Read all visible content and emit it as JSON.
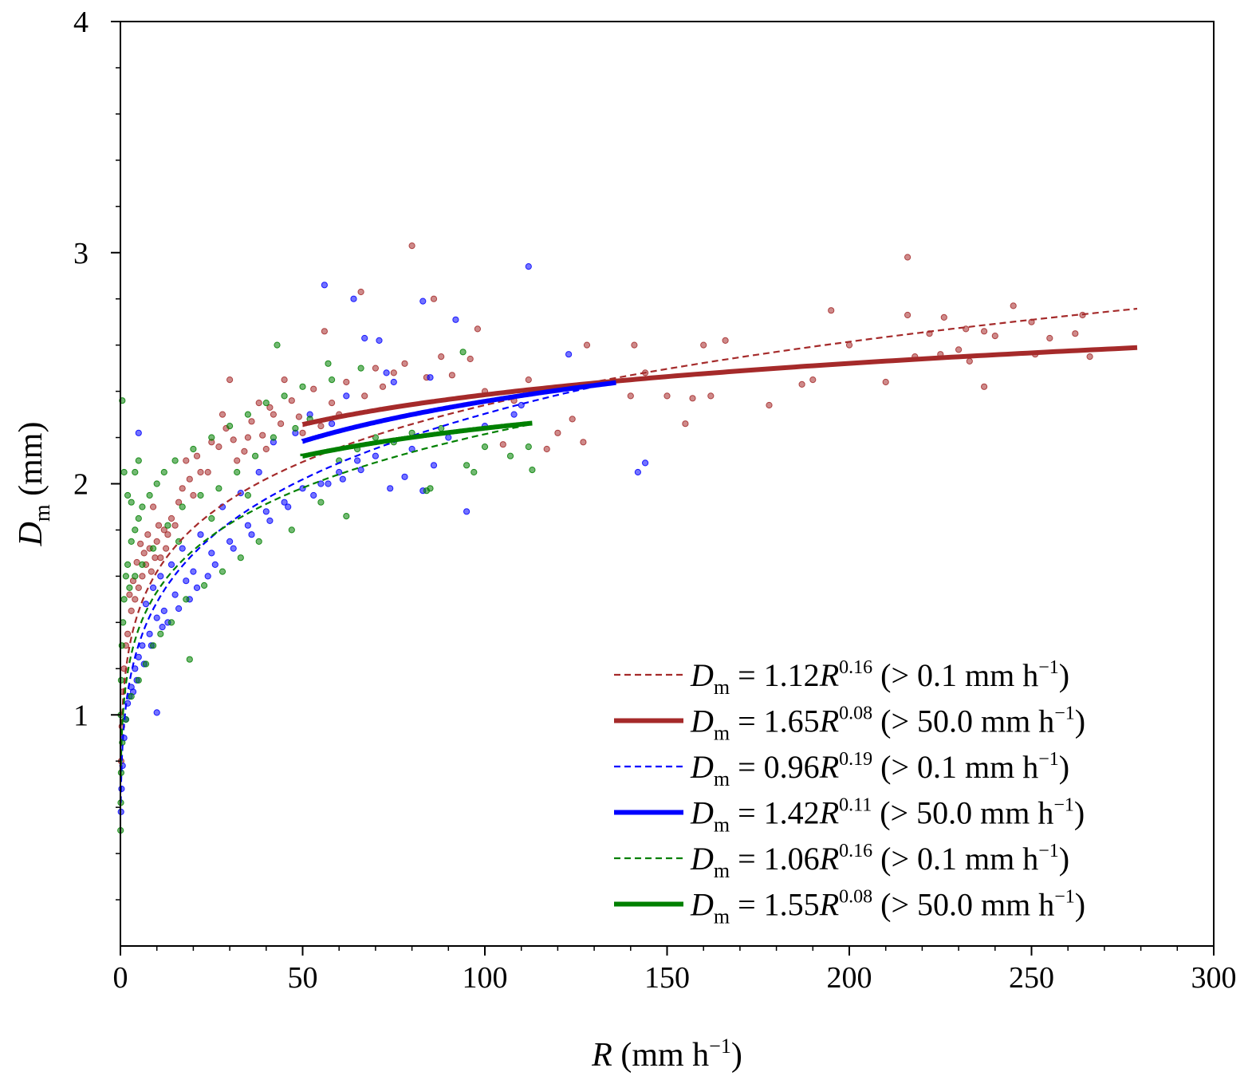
{
  "chart_data": {
    "type": "scatter",
    "xlabel": {
      "var": "R",
      "unit": " (mm h",
      "sup": "−1",
      "close": ")"
    },
    "ylabel": {
      "var": "D",
      "sub": "m",
      "unit": " (mm)"
    },
    "xlim": [
      0,
      300
    ],
    "ylim": [
      0,
      4
    ],
    "x_ticks": [
      0,
      50,
      100,
      150,
      200,
      250,
      300
    ],
    "y_ticks": [
      1,
      2,
      3,
      4
    ],
    "grid": false,
    "legend_position": "bottom-right",
    "colors": {
      "red": "#a52a2a",
      "blue": "#0000ff",
      "green": "#008000"
    },
    "fits": [
      {
        "name": "Dm = 1.12R^0.16 (> 0.1 mm h−1)",
        "coef": "1.12",
        "exp": "0.16",
        "thr": "0.1",
        "a": 1.12,
        "b": 0.16,
        "x_range": [
          0.1,
          279
        ],
        "color": "#a52a2a",
        "style": "dashed"
      },
      {
        "name": "Dm = 1.65R^0.08 (> 50.0 mm h−1)",
        "coef": "1.65",
        "exp": "0.08",
        "thr": "50.0",
        "a": 1.65,
        "b": 0.08,
        "x_range": [
          50,
          279
        ],
        "color": "#a52a2a",
        "style": "solid"
      },
      {
        "name": "Dm = 0.96R^0.19 (> 0.1 mm h−1)",
        "coef": "0.96",
        "exp": "0.19",
        "thr": "0.1",
        "a": 0.96,
        "b": 0.19,
        "x_range": [
          0.1,
          135
        ],
        "color": "#0000ff",
        "style": "dashed"
      },
      {
        "name": "Dm = 1.42R^0.11 (> 50.0 mm h−1)",
        "coef": "1.42",
        "exp": "0.11",
        "thr": "50.0",
        "a": 1.42,
        "b": 0.11,
        "x_range": [
          50,
          136
        ],
        "color": "#0000ff",
        "style": "solid"
      },
      {
        "name": "Dm = 1.06R^0.16 (> 0.1 mm h−1)",
        "coef": "1.06",
        "exp": "0.16",
        "thr": "0.1",
        "a": 1.06,
        "b": 0.16,
        "x_range": [
          0.1,
          113
        ],
        "color": "#008000",
        "style": "dashed"
      },
      {
        "name": "Dm = 1.55R^0.08 (> 50.0 mm h−1)",
        "coef": "1.55",
        "exp": "0.08",
        "thr": "50.0",
        "a": 1.55,
        "b": 0.08,
        "x_range": [
          50,
          113
        ],
        "color": "#008000",
        "style": "solid"
      }
    ],
    "scatter_series": [
      {
        "color": "#a52a2a",
        "points": [
          [
            80,
            3.03
          ],
          [
            216,
            2.98
          ],
          [
            66,
            2.83
          ],
          [
            86,
            2.8
          ],
          [
            195,
            2.75
          ],
          [
            245,
            2.77
          ],
          [
            216,
            2.73
          ],
          [
            226,
            2.72
          ],
          [
            264,
            2.73
          ],
          [
            250,
            2.7
          ],
          [
            56,
            2.66
          ],
          [
            98,
            2.67
          ],
          [
            232,
            2.67
          ],
          [
            237,
            2.66
          ],
          [
            128,
            2.6
          ],
          [
            141,
            2.6
          ],
          [
            160,
            2.6
          ],
          [
            166,
            2.62
          ],
          [
            200,
            2.6
          ],
          [
            222,
            2.65
          ],
          [
            240,
            2.64
          ],
          [
            255,
            2.63
          ],
          [
            262,
            2.65
          ],
          [
            225,
            2.56
          ],
          [
            230,
            2.58
          ],
          [
            218,
            2.55
          ],
          [
            233,
            2.53
          ],
          [
            251,
            2.56
          ],
          [
            266,
            2.55
          ],
          [
            237,
            2.42
          ],
          [
            190,
            2.45
          ],
          [
            187,
            2.43
          ],
          [
            210,
            2.44
          ],
          [
            150,
            2.38
          ],
          [
            157,
            2.37
          ],
          [
            162,
            2.38
          ],
          [
            144,
            2.48
          ],
          [
            178,
            2.34
          ],
          [
            155,
            2.26
          ],
          [
            140,
            2.38
          ],
          [
            124,
            2.28
          ],
          [
            127,
            2.18
          ],
          [
            120,
            2.22
          ],
          [
            105,
            2.17
          ],
          [
            117,
            2.15
          ],
          [
            96,
            2.54
          ],
          [
            88,
            2.55
          ],
          [
            75,
            2.48
          ],
          [
            67,
            2.38
          ],
          [
            60,
            2.3
          ],
          [
            55,
            2.25
          ],
          [
            50,
            2.22
          ],
          [
            45,
            2.45
          ],
          [
            42,
            2.3
          ],
          [
            40,
            2.15
          ],
          [
            38,
            2.35
          ],
          [
            35,
            2.2
          ],
          [
            32,
            2.1
          ],
          [
            30,
            2.45
          ],
          [
            28,
            2.3
          ],
          [
            25,
            2.18
          ],
          [
            22,
            2.05
          ],
          [
            20,
            1.95
          ],
          [
            18,
            2.1
          ],
          [
            16,
            1.92
          ],
          [
            14,
            1.85
          ],
          [
            12,
            1.8
          ],
          [
            10,
            1.75
          ],
          [
            9,
            1.9
          ],
          [
            8,
            1.72
          ],
          [
            7,
            1.65
          ],
          [
            6,
            1.6
          ],
          [
            5,
            1.55
          ],
          [
            4,
            1.5
          ],
          [
            3,
            1.45
          ],
          [
            2,
            1.35
          ],
          [
            1.5,
            1.3
          ],
          [
            1,
            1.2
          ],
          [
            0.7,
            1.1
          ],
          [
            0.4,
            0.95
          ],
          [
            0.2,
            0.8
          ],
          [
            11,
            1.68
          ],
          [
            13,
            1.78
          ],
          [
            15,
            1.82
          ],
          [
            17,
            1.98
          ],
          [
            19,
            2.02
          ],
          [
            21,
            2.12
          ],
          [
            24,
            2.05
          ],
          [
            27,
            2.16
          ],
          [
            29,
            2.24
          ],
          [
            31,
            2.19
          ],
          [
            34,
            2.14
          ],
          [
            36,
            2.27
          ],
          [
            39,
            2.21
          ],
          [
            41,
            2.33
          ],
          [
            44,
            2.26
          ],
          [
            47,
            2.36
          ],
          [
            49,
            2.29
          ],
          [
            53,
            2.41
          ],
          [
            58,
            2.35
          ],
          [
            62,
            2.44
          ],
          [
            70,
            2.5
          ],
          [
            72,
            2.42
          ],
          [
            78,
            2.52
          ],
          [
            84,
            2.46
          ],
          [
            91,
            2.47
          ],
          [
            100,
            2.4
          ],
          [
            108,
            2.36
          ],
          [
            112,
            2.45
          ],
          [
            130,
            2.43
          ],
          [
            6.5,
            1.7
          ],
          [
            7.5,
            1.78
          ],
          [
            8.5,
            1.62
          ],
          [
            9.5,
            1.68
          ],
          [
            4.5,
            1.66
          ],
          [
            3.5,
            1.58
          ],
          [
            5.5,
            1.74
          ],
          [
            2.5,
            1.52
          ],
          [
            10.5,
            1.82
          ],
          [
            12.5,
            1.72
          ]
        ]
      },
      {
        "color": "#0000ff",
        "points": [
          [
            112,
            2.94
          ],
          [
            56,
            2.86
          ],
          [
            64,
            2.8
          ],
          [
            83,
            2.79
          ],
          [
            92,
            2.71
          ],
          [
            67,
            2.63
          ],
          [
            71,
            2.62
          ],
          [
            123,
            2.56
          ],
          [
            73,
            2.48
          ],
          [
            85,
            2.46
          ],
          [
            75,
            2.44
          ],
          [
            108,
            2.3
          ],
          [
            110,
            2.34
          ],
          [
            142,
            2.05
          ],
          [
            144,
            2.09
          ],
          [
            95,
            1.88
          ],
          [
            83,
            1.97
          ],
          [
            74,
            1.98
          ],
          [
            78,
            2.03
          ],
          [
            86,
            2.08
          ],
          [
            70,
            2.12
          ],
          [
            65,
            2.1
          ],
          [
            60,
            2.05
          ],
          [
            55,
            2.0
          ],
          [
            50,
            1.98
          ],
          [
            45,
            1.92
          ],
          [
            40,
            1.88
          ],
          [
            35,
            1.82
          ],
          [
            30,
            1.75
          ],
          [
            25,
            1.7
          ],
          [
            20,
            1.62
          ],
          [
            18,
            1.58
          ],
          [
            15,
            1.52
          ],
          [
            12,
            1.45
          ],
          [
            10,
            1.42
          ],
          [
            8,
            1.35
          ],
          [
            6,
            1.3
          ],
          [
            5,
            1.25
          ],
          [
            4,
            1.2
          ],
          [
            3,
            1.12
          ],
          [
            2,
            1.05
          ],
          [
            1.5,
            0.98
          ],
          [
            1,
            0.9
          ],
          [
            0.6,
            0.78
          ],
          [
            0.3,
            0.68
          ],
          [
            0.15,
            0.58
          ],
          [
            10,
            1.01
          ],
          [
            5,
            2.22
          ],
          [
            62,
            2.38
          ],
          [
            52,
            2.3
          ],
          [
            58,
            2.26
          ],
          [
            42,
            2.18
          ],
          [
            48,
            2.22
          ],
          [
            38,
            2.05
          ],
          [
            33,
            1.96
          ],
          [
            28,
            1.9
          ],
          [
            22,
            1.78
          ],
          [
            17,
            1.72
          ],
          [
            14,
            1.65
          ],
          [
            11,
            1.6
          ],
          [
            9,
            1.55
          ],
          [
            7,
            1.48
          ],
          [
            13,
            1.4
          ],
          [
            16,
            1.46
          ],
          [
            19,
            1.5
          ],
          [
            21,
            1.55
          ],
          [
            24,
            1.6
          ],
          [
            26,
            1.65
          ],
          [
            31,
            1.72
          ],
          [
            36,
            1.78
          ],
          [
            41,
            1.84
          ],
          [
            46,
            1.9
          ],
          [
            53,
            1.95
          ],
          [
            57,
            2.0
          ],
          [
            61,
            2.02
          ],
          [
            66,
            2.06
          ],
          [
            80,
            2.15
          ],
          [
            90,
            2.2
          ],
          [
            100,
            2.25
          ],
          [
            8.5,
            1.3
          ],
          [
            6.5,
            1.22
          ],
          [
            4.5,
            1.15
          ],
          [
            3.5,
            1.1
          ],
          [
            2.5,
            1.08
          ],
          [
            11.5,
            1.38
          ]
        ]
      },
      {
        "color": "#008000",
        "points": [
          [
            43,
            2.6
          ],
          [
            57,
            2.52
          ],
          [
            94,
            2.57
          ],
          [
            66,
            2.5
          ],
          [
            58,
            2.45
          ],
          [
            50,
            2.42
          ],
          [
            45,
            2.38
          ],
          [
            40,
            2.35
          ],
          [
            35,
            2.3
          ],
          [
            30,
            2.25
          ],
          [
            25,
            2.2
          ],
          [
            20,
            2.15
          ],
          [
            15,
            2.1
          ],
          [
            12,
            2.05
          ],
          [
            10,
            2.0
          ],
          [
            8,
            1.95
          ],
          [
            6,
            1.9
          ],
          [
            5,
            1.85
          ],
          [
            4,
            1.8
          ],
          [
            3,
            1.75
          ],
          [
            2,
            1.65
          ],
          [
            1.5,
            1.6
          ],
          [
            1,
            1.5
          ],
          [
            0.7,
            1.4
          ],
          [
            0.4,
            1.3
          ],
          [
            0.2,
            1.15
          ],
          [
            0.1,
            1.0
          ],
          [
            0.5,
            2.36
          ],
          [
            1,
            2.05
          ],
          [
            2,
            1.95
          ],
          [
            3,
            1.92
          ],
          [
            4,
            2.05
          ],
          [
            5,
            2.1
          ],
          [
            100,
            2.16
          ],
          [
            95,
            2.08
          ],
          [
            97,
            2.05
          ],
          [
            107,
            2.12
          ],
          [
            112,
            2.16
          ],
          [
            113,
            2.06
          ],
          [
            84,
            1.97
          ],
          [
            85,
            1.98
          ],
          [
            55,
            1.92
          ],
          [
            62,
            1.86
          ],
          [
            47,
            1.8
          ],
          [
            38,
            1.75
          ],
          [
            33,
            1.68
          ],
          [
            28,
            1.62
          ],
          [
            23,
            1.56
          ],
          [
            18,
            1.5
          ],
          [
            14,
            1.4
          ],
          [
            11,
            1.35
          ],
          [
            9,
            1.3
          ],
          [
            7,
            1.22
          ],
          [
            5,
            1.15
          ],
          [
            3,
            1.08
          ],
          [
            1.5,
            0.98
          ],
          [
            0.5,
            0.88
          ],
          [
            0.2,
            0.75
          ],
          [
            0.1,
            0.62
          ],
          [
            0.05,
            0.5
          ],
          [
            19,
            1.24
          ],
          [
            52,
            2.28
          ],
          [
            48,
            2.24
          ],
          [
            42,
            2.2
          ],
          [
            37,
            2.12
          ],
          [
            32,
            2.05
          ],
          [
            27,
            1.98
          ],
          [
            22,
            1.95
          ],
          [
            17,
            1.9
          ],
          [
            13,
            1.82
          ],
          [
            9,
            1.72
          ],
          [
            6,
            1.65
          ],
          [
            4,
            1.6
          ],
          [
            2.5,
            1.55
          ],
          [
            70,
            2.2
          ],
          [
            75,
            2.18
          ],
          [
            80,
            2.22
          ],
          [
            88,
            2.24
          ],
          [
            65,
            2.15
          ],
          [
            60,
            2.1
          ],
          [
            35,
            1.95
          ],
          [
            25,
            1.85
          ],
          [
            16,
            1.75
          ]
        ]
      }
    ]
  }
}
